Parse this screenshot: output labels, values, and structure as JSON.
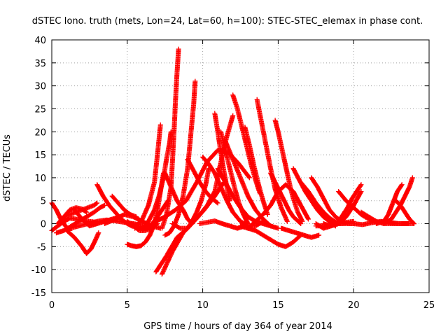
{
  "chart_data": {
    "type": "scatter",
    "title": "dSTEC Iono. truth (mets, Lon=24, Lat=60, h=100): STEC-STEC_elemax in phase cont.",
    "xlabel": "GPS time / hours of day 364 of year 2014",
    "ylabel": "dSTEC  / TECUs",
    "xlim": [
      0,
      25
    ],
    "ylim": [
      -15,
      40
    ],
    "xticks": [
      0,
      5,
      10,
      15,
      20,
      25
    ],
    "yticks": [
      -15,
      -10,
      -5,
      0,
      5,
      10,
      15,
      20,
      25,
      30,
      35,
      40
    ],
    "grid": true,
    "marker": "plus",
    "color": "#ff0000",
    "series": [
      {
        "x": [
          0.0,
          0.3,
          0.6,
          0.9,
          1.2
        ],
        "y": [
          4.5,
          3.0,
          1.0,
          -0.5,
          -1.5
        ]
      },
      {
        "x": [
          0.0,
          0.4,
          0.8,
          1.2,
          1.6,
          2.0,
          2.5,
          3.0
        ],
        "y": [
          -1.5,
          -0.5,
          0.5,
          1.2,
          1.0,
          0.8,
          0.5,
          0.3
        ]
      },
      {
        "x": [
          0.3,
          0.8,
          1.3,
          1.8,
          2.3,
          2.8,
          3.2,
          3.5
        ],
        "y": [
          -2.0,
          -1.5,
          -0.5,
          0.5,
          1.5,
          2.5,
          3.5,
          4.0
        ]
      },
      {
        "x": [
          0.4,
          0.8,
          1.2,
          1.6,
          2.0,
          2.3
        ],
        "y": [
          0.0,
          1.5,
          3.0,
          3.5,
          3.2,
          2.5
        ]
      },
      {
        "x": [
          0.8,
          1.2,
          1.6,
          2.0,
          2.4,
          2.8,
          3.0
        ],
        "y": [
          1.5,
          2.0,
          2.5,
          3.0,
          3.5,
          4.0,
          4.5
        ]
      },
      {
        "x": [
          1.0,
          1.5,
          2.0,
          2.3,
          2.6,
          2.9,
          3.1
        ],
        "y": [
          -1.5,
          -3.0,
          -5.0,
          -6.5,
          -5.5,
          -3.5,
          -2.0
        ]
      },
      {
        "x": [
          1.2,
          1.8,
          2.4,
          3.0,
          3.6,
          4.2,
          4.8,
          5.4,
          6.0
        ],
        "y": [
          -1.0,
          -0.5,
          0.0,
          0.5,
          0.8,
          0.6,
          0.3,
          0.0,
          -0.3
        ]
      },
      {
        "x": [
          1.5,
          2.0,
          2.5,
          3.0,
          3.5,
          4.0,
          4.5
        ],
        "y": [
          3.0,
          1.0,
          -0.5,
          0.0,
          0.5,
          1.0,
          1.5
        ]
      },
      {
        "x": [
          3.0,
          3.4,
          3.8,
          4.2,
          4.6,
          5.0,
          5.3
        ],
        "y": [
          8.5,
          6.0,
          4.0,
          2.5,
          1.0,
          0.0,
          -0.5
        ]
      },
      {
        "x": [
          4.0,
          4.4,
          4.8,
          5.2,
          5.6
        ],
        "y": [
          6.0,
          4.5,
          3.0,
          2.0,
          1.5
        ]
      },
      {
        "x": [
          3.5,
          4.2,
          4.8,
          5.4,
          6.0,
          6.6,
          7.2
        ],
        "y": [
          0.0,
          1.0,
          2.0,
          1.5,
          0.5,
          -0.5,
          -1.0
        ]
      },
      {
        "x": [
          5.0,
          5.4,
          5.8,
          6.2,
          6.6,
          7.0
        ],
        "y": [
          0.5,
          -0.5,
          -1.5,
          -1.5,
          -1.0,
          0.0
        ]
      },
      {
        "x": [
          5.3,
          5.7,
          6.1,
          6.5,
          6.9,
          7.3,
          7.7
        ],
        "y": [
          0.0,
          -0.8,
          -1.2,
          -0.5,
          1.0,
          3.0,
          5.0
        ]
      },
      {
        "x": [
          5.0,
          5.3,
          5.6,
          5.9,
          6.2,
          6.5,
          6.8,
          7.0,
          7.2,
          7.4
        ],
        "y": [
          -4.5,
          -4.8,
          -5.0,
          -4.8,
          -4.0,
          -2.5,
          0.0,
          3.0,
          7.0,
          11.0
        ]
      },
      {
        "x": [
          5.5,
          6.0,
          6.4,
          6.8,
          7.0,
          7.2
        ],
        "y": [
          -1.0,
          1.0,
          4.0,
          9.0,
          15.0,
          21.5
        ]
      },
      {
        "x": [
          6.0,
          6.4,
          6.8,
          7.1,
          7.4,
          7.6,
          7.8,
          7.9
        ],
        "y": [
          -1.0,
          0.5,
          3.0,
          6.0,
          10.0,
          14.0,
          17.5,
          20.0
        ]
      },
      {
        "x": [
          7.3,
          7.6,
          7.9,
          8.0,
          8.1,
          8.2,
          8.3,
          8.4
        ],
        "y": [
          -1.0,
          2.0,
          8.0,
          14.0,
          20.0,
          27.0,
          33.0,
          38.0
        ]
      },
      {
        "x": [
          7.5,
          7.8,
          8.1,
          8.4,
          8.7,
          9.0,
          9.2,
          9.4,
          9.5
        ],
        "y": [
          -2.5,
          -2.0,
          -0.5,
          2.0,
          6.0,
          12.0,
          19.0,
          26.0,
          31.0
        ]
      },
      {
        "x": [
          6.9,
          7.5,
          8.2,
          8.9,
          9.6,
          10.3,
          11.0,
          11.7,
          12.4,
          13.1
        ],
        "y": [
          0.5,
          1.5,
          3.0,
          5.0,
          9.0,
          13.5,
          16.0,
          15.5,
          13.0,
          10.0
        ]
      },
      {
        "x": [
          6.9,
          7.6,
          8.3,
          9.0,
          9.7,
          10.3,
          10.8,
          11.0,
          11.3,
          11.6,
          12.0
        ],
        "y": [
          -10.5,
          -7.0,
          -3.0,
          -1.0,
          1.5,
          4.0,
          7.0,
          10.0,
          15.0,
          19.0,
          23.5
        ]
      },
      {
        "x": [
          7.3,
          8.0,
          8.7,
          9.4,
          10.1,
          10.8,
          11.4
        ],
        "y": [
          -11.0,
          -6.0,
          -2.0,
          0.5,
          3.0,
          6.0,
          9.0
        ]
      },
      {
        "x": [
          7.5,
          7.9,
          8.3,
          8.7,
          9.0,
          9.3
        ],
        "y": [
          11.0,
          8.0,
          5.0,
          3.0,
          1.0,
          0.0
        ]
      },
      {
        "x": [
          8.0,
          8.5,
          9.0,
          9.3,
          9.6,
          9.9,
          10.2,
          10.4
        ],
        "y": [
          0.0,
          -1.0,
          -1.0,
          0.5,
          2.5,
          5.0,
          8.5,
          12.0
        ]
      },
      {
        "x": [
          9.0,
          9.4,
          9.8,
          10.2,
          10.6,
          11.0
        ],
        "y": [
          14.0,
          11.5,
          9.0,
          7.0,
          5.5,
          4.5
        ]
      },
      {
        "x": [
          9.8,
          10.3,
          10.8,
          11.3,
          11.8,
          12.3,
          12.8
        ],
        "y": [
          0.0,
          0.3,
          0.6,
          0.0,
          -0.5,
          -1.0,
          -0.5
        ]
      },
      {
        "x": [
          10.0,
          10.4,
          10.8,
          11.2,
          11.6,
          12.0,
          12.5,
          13.0,
          13.5,
          14.0
        ],
        "y": [
          14.5,
          13.0,
          11.0,
          8.0,
          5.0,
          2.5,
          0.5,
          -0.5,
          -0.5,
          0.5
        ]
      },
      {
        "x": [
          10.8,
          11.0,
          11.2,
          11.4,
          11.6,
          11.8
        ],
        "y": [
          24.0,
          20.0,
          15.5,
          11.5,
          8.0,
          5.0
        ]
      },
      {
        "x": [
          11.2,
          11.5,
          11.8,
          12.1,
          12.4,
          12.7,
          13.0
        ],
        "y": [
          20.0,
          16.0,
          12.0,
          8.0,
          4.5,
          2.0,
          0.0
        ]
      },
      {
        "x": [
          11.0,
          11.5,
          12.0,
          12.5,
          13.0,
          13.5,
          14.0,
          14.5
        ],
        "y": [
          12.0,
          9.0,
          6.0,
          3.5,
          1.5,
          0.5,
          0.0,
          -0.5
        ]
      },
      {
        "x": [
          12.0,
          12.3,
          12.6,
          12.9,
          13.2,
          13.5,
          13.8
        ],
        "y": [
          28.0,
          25.0,
          21.0,
          17.0,
          13.0,
          9.5,
          6.5
        ]
      },
      {
        "x": [
          11.5,
          12.0,
          12.5,
          13.0,
          13.5,
          14.0,
          14.5,
          15.0
        ],
        "y": [
          18.0,
          14.0,
          10.0,
          6.0,
          3.0,
          1.0,
          -0.5,
          -1.0
        ]
      },
      {
        "x": [
          12.8,
          13.1,
          13.4,
          13.7,
          14.0,
          14.3
        ],
        "y": [
          21.0,
          17.0,
          12.5,
          8.5,
          5.0,
          2.0
        ]
      },
      {
        "x": [
          13.6,
          13.9,
          14.2,
          14.5,
          14.8,
          15.2,
          15.6
        ],
        "y": [
          27.0,
          22.0,
          17.0,
          12.0,
          7.5,
          3.5,
          0.5
        ]
      },
      {
        "x": [
          12.5,
          13.0,
          13.5,
          14.0,
          14.5,
          15.0,
          15.5,
          16.0,
          16.5
        ],
        "y": [
          -0.5,
          -1.0,
          -1.5,
          -2.5,
          -3.5,
          -4.5,
          -5.0,
          -4.0,
          -2.5
        ]
      },
      {
        "x": [
          13.0,
          13.5,
          14.0,
          14.5,
          15.0,
          15.5,
          16.0,
          16.5,
          17.0
        ],
        "y": [
          -1.0,
          0.5,
          2.0,
          4.0,
          7.0,
          8.5,
          7.0,
          4.0,
          1.0
        ]
      },
      {
        "x": [
          14.8,
          15.0,
          15.2,
          15.4,
          15.6,
          15.8,
          16.0,
          16.3,
          16.6
        ],
        "y": [
          22.5,
          20.0,
          17.0,
          14.0,
          11.0,
          8.0,
          5.5,
          2.5,
          0.5
        ]
      },
      {
        "x": [
          14.5,
          14.8,
          15.1,
          15.4,
          15.7,
          16.0,
          16.5
        ],
        "y": [
          11.0,
          9.0,
          7.0,
          5.0,
          3.0,
          1.5,
          0.0
        ]
      },
      {
        "x": [
          15.2,
          15.7,
          16.2,
          16.7,
          17.2,
          17.7
        ],
        "y": [
          -1.0,
          -1.5,
          -2.0,
          -2.5,
          -3.0,
          -2.5
        ]
      },
      {
        "x": [
          16.0,
          16.4,
          16.8,
          17.2,
          17.6,
          18.0,
          18.4,
          18.8
        ],
        "y": [
          12.0,
          9.5,
          7.0,
          5.0,
          3.0,
          1.5,
          0.5,
          -0.5
        ]
      },
      {
        "x": [
          16.5,
          17.0,
          17.5,
          18.0,
          18.5,
          19.0,
          19.5
        ],
        "y": [
          9.0,
          7.0,
          4.5,
          2.5,
          1.0,
          0.0,
          0.0
        ]
      },
      {
        "x": [
          17.2,
          17.6,
          18.0,
          18.4,
          18.8,
          19.2,
          19.6,
          20.0
        ],
        "y": [
          10.0,
          8.0,
          5.5,
          3.0,
          1.5,
          0.5,
          0.0,
          0.0
        ]
      },
      {
        "x": [
          17.5,
          18.0,
          18.5,
          19.0,
          19.5,
          20.0
        ],
        "y": [
          -0.5,
          -0.5,
          -0.2,
          0.0,
          0.3,
          0.5
        ]
      },
      {
        "x": [
          17.5,
          18.0,
          18.5,
          19.0,
          19.3,
          19.6,
          19.9,
          20.2,
          20.5
        ],
        "y": [
          0.0,
          -1.0,
          -0.5,
          0.5,
          2.0,
          3.5,
          5.5,
          7.0,
          8.5
        ]
      },
      {
        "x": [
          18.0,
          18.5,
          19.0,
          19.5,
          20.0,
          20.5
        ],
        "y": [
          0.0,
          -0.5,
          0.0,
          1.5,
          4.0,
          7.0
        ]
      },
      {
        "x": [
          19.0,
          19.5,
          20.0,
          20.5,
          21.0,
          21.5
        ],
        "y": [
          7.0,
          5.0,
          3.5,
          2.0,
          1.0,
          0.5
        ]
      },
      {
        "x": [
          20.5,
          21.0,
          21.5,
          22.0,
          22.5,
          23.0,
          23.5,
          24.0
        ],
        "y": [
          2.5,
          1.5,
          0.5,
          0.0,
          0.0,
          0.0,
          0.0,
          0.0
        ]
      },
      {
        "x": [
          20.0,
          20.6,
          21.2,
          21.8,
          22.4,
          23.0,
          23.6
        ],
        "y": [
          0.0,
          -0.2,
          0.2,
          0.5,
          0.3,
          0.0,
          0.0
        ]
      },
      {
        "x": [
          21.5,
          22.0,
          22.3,
          22.6,
          22.9,
          23.2
        ],
        "y": [
          0.0,
          0.5,
          2.0,
          4.5,
          7.0,
          8.5
        ]
      },
      {
        "x": [
          22.0,
          22.5,
          22.8,
          23.1,
          23.4,
          23.7,
          23.9
        ],
        "y": [
          0.0,
          1.0,
          2.5,
          4.0,
          6.0,
          8.0,
          10.0
        ]
      },
      {
        "x": [
          22.8,
          23.1,
          23.4,
          23.7,
          24.0
        ],
        "y": [
          5.0,
          4.0,
          2.5,
          1.0,
          0.0
        ]
      }
    ]
  }
}
